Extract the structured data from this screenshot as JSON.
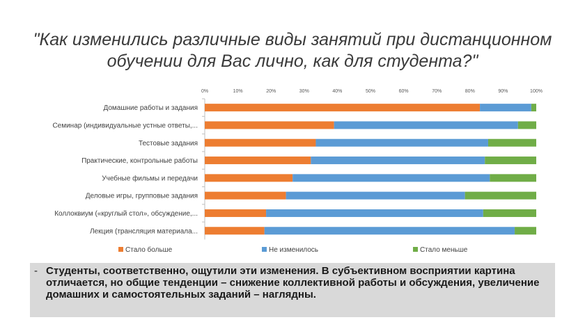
{
  "slide": {
    "title_line1": "\"Как изменились различные виды занятий при дистанционном",
    "title_line2": "обучении для Вас лично, как для студента?\"",
    "note_dash": "-",
    "note_text": "Студенты, соответственно, ощутили эти изменения. В субъективном восприятии картина отличается, но общие тенденции – снижение коллективной работы и обсуждения, увеличение домашних и самостоятельных заданий – наглядны."
  },
  "colors": {
    "more": "#ED7D31",
    "same": "#5B9BD5",
    "less": "#70AD47"
  },
  "chart_data": {
    "type": "bar",
    "orientation": "horizontal",
    "stacked": "percent",
    "categories": [
      "Домашние работы и задания",
      "Семинар (индивидуальные устные ответы,...",
      "Тестовые задания",
      "Практические, контрольные работы",
      "Учебные фильмы и передачи",
      "Деловые игры, групповые задания",
      "Коллоквиум («круглый стол», обсуждение,...",
      "Лекция (трансляция материала..."
    ],
    "series": [
      {
        "name": "Стало больше",
        "color": "#ED7D31",
        "values": [
          83,
          39,
          33.5,
          32,
          26.5,
          24.5,
          18.5,
          18
        ]
      },
      {
        "name": "Не изменилось",
        "color": "#5B9BD5",
        "values": [
          15.5,
          55.5,
          52,
          52.5,
          59.5,
          54,
          65.5,
          75.5
        ]
      },
      {
        "name": "Стало меньше",
        "color": "#70AD47",
        "values": [
          1.5,
          5.5,
          14.5,
          15.5,
          14,
          21.5,
          16,
          6.5
        ]
      }
    ],
    "x_ticks": [
      "0%",
      "10%",
      "20%",
      "30%",
      "40%",
      "50%",
      "60%",
      "70%",
      "80%",
      "90%",
      "100%"
    ],
    "xlim": [
      0,
      100
    ],
    "grid": false,
    "legend_position": "bottom"
  }
}
